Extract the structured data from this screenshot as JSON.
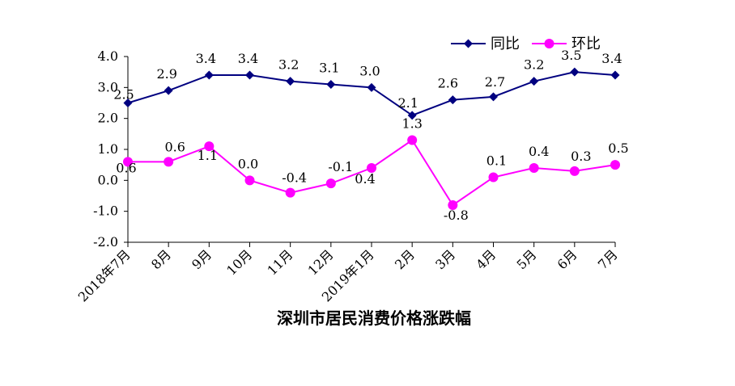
{
  "chart_data": {
    "type": "line",
    "title": "深圳市居民消费价格涨跌幅",
    "xlabel": "",
    "ylabel": "",
    "ylim": [
      -2.0,
      4.0
    ],
    "yticks": [
      "4.0",
      "3.0",
      "2.0",
      "1.0",
      "0.0",
      "-1.0",
      "-2.0"
    ],
    "categories": [
      "2018年7月",
      "8月",
      "9月",
      "10月",
      "11月",
      "12月",
      "2019年1月",
      "2月",
      "3月",
      "4月",
      "5月",
      "6月",
      "7月"
    ],
    "grid": false,
    "legend_position": "top-right",
    "series": [
      {
        "name": "同比",
        "color": "#000080",
        "marker": "diamond",
        "values": [
          2.5,
          2.9,
          3.4,
          3.4,
          3.2,
          3.1,
          3.0,
          2.1,
          2.6,
          2.7,
          3.2,
          3.5,
          3.4
        ],
        "labels": [
          "2.5",
          "2.9",
          "3.4",
          "3.4",
          "3.2",
          "3.1",
          "3.0",
          "2.1",
          "2.6",
          "2.7",
          "3.2",
          "3.5",
          "3.4"
        ]
      },
      {
        "name": "环比",
        "color": "#FF00FF",
        "marker": "circle",
        "values": [
          0.6,
          0.6,
          1.1,
          0.0,
          -0.4,
          -0.1,
          0.4,
          1.3,
          -0.8,
          0.1,
          0.4,
          0.3,
          0.5
        ],
        "labels": [
          "0.6",
          "0.6",
          "1.1",
          "0.0",
          "-0.4",
          "-0.1",
          "0.4",
          "1.3",
          "-0.8",
          "0.1",
          "0.4",
          "0.3",
          "0.5"
        ]
      }
    ]
  }
}
